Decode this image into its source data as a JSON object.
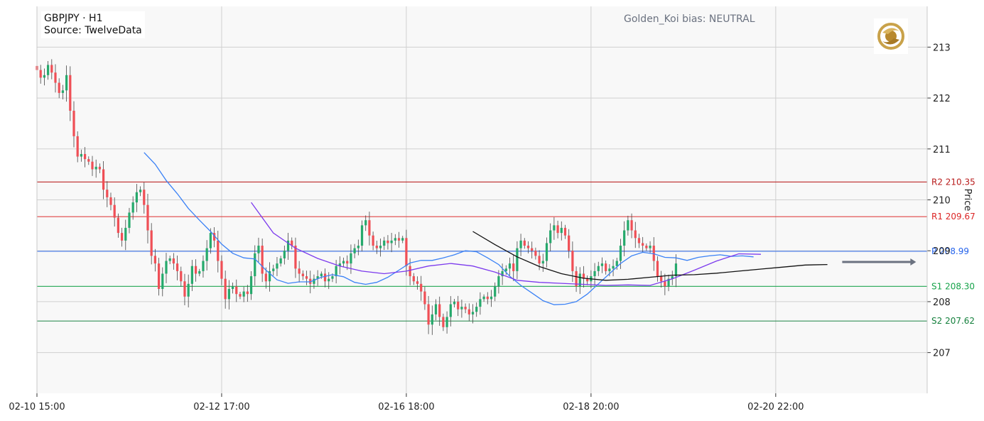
{
  "header": {
    "symbol_line": "GBPJPY  ·  H1",
    "source_line": "Source: TwelveData",
    "bias_text": "Golden_Koi bias: NEUTRAL"
  },
  "colors": {
    "bull": "#26a96c",
    "bear": "#ef4f56",
    "grid": "#d0d0d0",
    "plot_bg": "#f8f8f8",
    "ma_fast": "#3b82f6",
    "ma_mid": "#7c3aed",
    "ma_slow": "#111111",
    "r2": "#b91c1c",
    "r1": "#dc2626",
    "pivot": "#2563eb",
    "s1": "#16a34a",
    "s2": "#15803d",
    "arrow": "#6b7280",
    "logo_gold": "#c9a24a"
  },
  "chart_data": {
    "type": "candlestick",
    "title": "GBPJPY  ·  H1",
    "ylabel": "Price",
    "ylim": [
      206.2,
      213.8
    ],
    "y_ticks": [
      207,
      208,
      209,
      210,
      211,
      212,
      213
    ],
    "x_tick_labels": [
      "02-10 15:00",
      "02-12 17:00",
      "02-16 18:00",
      "02-18 20:00",
      "02-20 22:00"
    ],
    "x_tick_index": [
      0,
      50,
      100,
      150,
      200
    ],
    "x_range": [
      0,
      241
    ],
    "levels": [
      {
        "name": "R2",
        "label": "R2 210.35",
        "value": 210.35,
        "color_key": "r2"
      },
      {
        "name": "R1",
        "label": "R1 209.67",
        "value": 209.67,
        "color_key": "r1"
      },
      {
        "name": "P",
        "label": "P 208.99",
        "value": 208.99,
        "color_key": "pivot"
      },
      {
        "name": "S1",
        "label": "S1 208.30",
        "value": 208.3,
        "color_key": "s1"
      },
      {
        "name": "S2",
        "label": "S2 207.62",
        "value": 207.62,
        "color_key": "s2"
      }
    ],
    "closes": [
      212.55,
      212.4,
      212.45,
      212.65,
      212.5,
      212.3,
      212.1,
      212.15,
      212.45,
      211.75,
      211.25,
      210.85,
      210.9,
      210.8,
      210.75,
      210.6,
      210.65,
      210.6,
      210.2,
      210.05,
      209.9,
      209.65,
      209.35,
      209.2,
      209.45,
      209.75,
      209.95,
      210.15,
      210.2,
      209.9,
      209.4,
      208.9,
      208.75,
      208.25,
      208.55,
      208.8,
      208.85,
      208.75,
      208.6,
      208.4,
      208.1,
      208.35,
      208.7,
      208.55,
      208.6,
      208.8,
      209.05,
      209.35,
      209.2,
      208.8,
      208.45,
      208.05,
      208.25,
      208.3,
      208.15,
      208.1,
      208.2,
      208.15,
      208.5,
      208.95,
      209.1,
      208.55,
      208.4,
      208.6,
      208.65,
      208.75,
      208.85,
      209.0,
      209.2,
      209.1,
      208.65,
      208.55,
      208.5,
      208.45,
      208.35,
      208.45,
      208.5,
      208.55,
      208.4,
      208.45,
      208.5,
      208.7,
      208.75,
      208.8,
      208.75,
      208.95,
      209.05,
      209.1,
      209.5,
      209.6,
      209.3,
      209.1,
      209.05,
      209.1,
      209.2,
      209.15,
      209.2,
      209.25,
      209.2,
      209.25,
      208.7,
      208.5,
      208.4,
      208.35,
      208.2,
      207.95,
      207.55,
      207.75,
      207.95,
      207.7,
      207.5,
      207.7,
      207.95,
      208.0,
      207.85,
      207.9,
      207.85,
      207.75,
      207.8,
      207.9,
      208.05,
      208.1,
      208.05,
      208.1,
      208.3,
      208.5,
      208.6,
      208.65,
      208.75,
      208.6,
      209.05,
      209.2,
      209.1,
      209.05,
      209.0,
      208.9,
      208.75,
      208.8,
      209.15,
      209.4,
      209.5,
      209.35,
      209.45,
      209.3,
      209.0,
      208.6,
      208.3,
      208.55,
      208.45,
      208.4,
      208.5,
      208.6,
      208.7,
      208.75,
      208.6,
      208.65,
      208.7,
      208.8,
      209.1,
      209.4,
      209.6,
      209.4,
      209.25,
      209.15,
      209.1,
      209.05,
      209.1,
      208.8,
      208.5,
      208.4,
      208.3,
      208.45,
      208.5,
      208.75
    ],
    "series": [
      {
        "color_key": "ma_fast",
        "x_start": 29,
        "step": 3,
        "values": [
          210.93,
          210.7,
          210.38,
          210.12,
          209.83,
          209.6,
          209.38,
          209.13,
          208.95,
          208.86,
          208.84,
          208.62,
          208.43,
          208.36,
          208.39,
          208.39,
          208.48,
          208.53,
          208.49,
          208.38,
          208.34,
          208.38,
          208.48,
          208.62,
          208.76,
          208.81,
          208.81,
          208.86,
          208.92,
          209.0,
          208.98,
          208.86,
          208.73,
          208.5,
          208.32,
          208.17,
          208.02,
          207.94,
          207.95,
          208.0,
          208.15,
          208.35,
          208.55,
          208.75,
          208.9,
          208.97,
          208.94,
          208.87,
          208.86,
          208.81,
          208.87,
          208.9,
          208.92,
          208.89,
          208.9,
          208.88
        ]
      },
      {
        "color_key": "ma_mid",
        "x_start": 58,
        "step": 6,
        "values": [
          209.95,
          209.35,
          209.05,
          208.85,
          208.7,
          208.6,
          208.55,
          208.6,
          208.7,
          208.75,
          208.7,
          208.58,
          208.42,
          208.38,
          208.36,
          208.34,
          208.32,
          208.33,
          208.32,
          208.45,
          208.62,
          208.8,
          208.94,
          208.93
        ]
      },
      {
        "color_key": "ma_slow",
        "x_start": 118,
        "step": 6,
        "values": [
          209.38,
          209.12,
          208.88,
          208.69,
          208.55,
          208.46,
          208.42,
          208.44,
          208.48,
          208.52,
          208.53,
          208.56,
          208.6,
          208.64,
          208.68,
          208.72,
          208.73
        ]
      }
    ],
    "forecast_arrow": {
      "x_start": 218,
      "x_end": 238,
      "value": 208.78
    }
  }
}
